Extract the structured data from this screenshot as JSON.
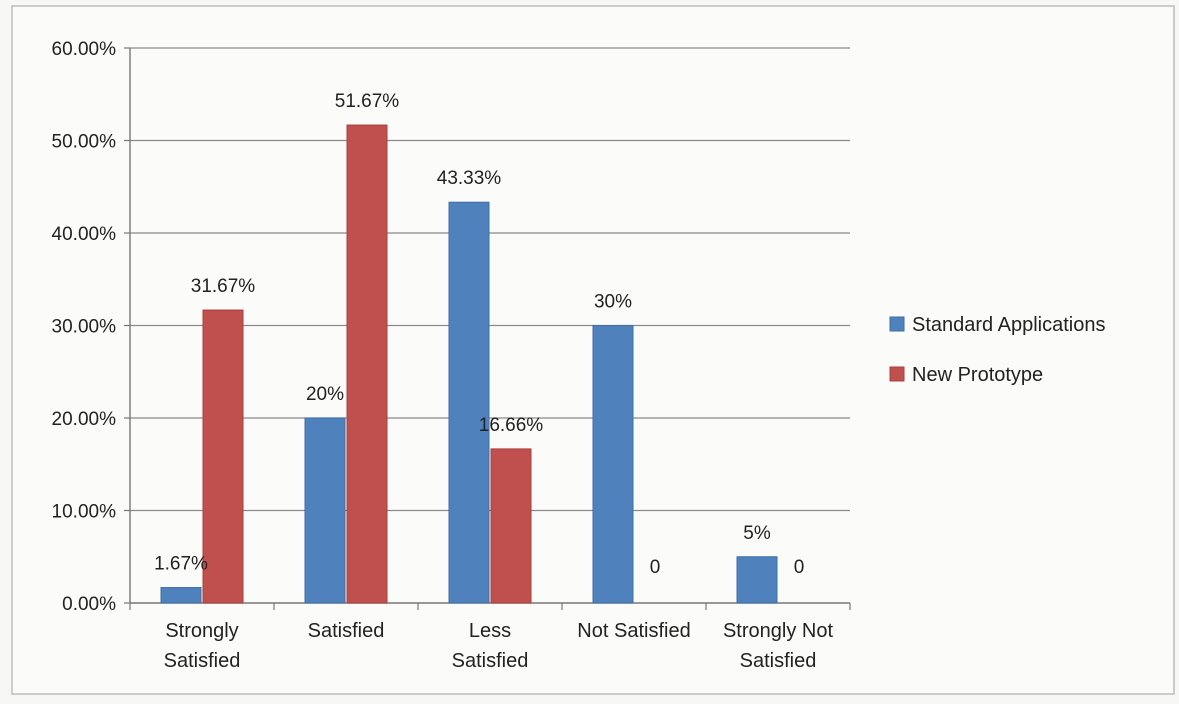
{
  "chart_data": {
    "type": "bar",
    "title": "",
    "xlabel": "",
    "ylabel": "",
    "ylim": [
      0,
      0.6
    ],
    "y_ticks": [
      0,
      0.1,
      0.2,
      0.3,
      0.4,
      0.5,
      0.6
    ],
    "y_tick_labels": [
      "0.00%",
      "10.00%",
      "20.00%",
      "30.00%",
      "40.00%",
      "50.00%",
      "60.00%"
    ],
    "grid": true,
    "legend_position": "right",
    "categories": [
      [
        "Strongly",
        "Satisfied"
      ],
      [
        "Satisfied"
      ],
      [
        "Less",
        "Satisfied"
      ],
      [
        "Not Satisfied"
      ],
      [
        "Strongly Not",
        "Satisfied"
      ]
    ],
    "series": [
      {
        "name": "Standard Applications",
        "color": "#4f81bd",
        "values": [
          0.0167,
          0.2,
          0.4333,
          0.3,
          0.05
        ],
        "labels": [
          "1.67%",
          "20%",
          "43.33%",
          "30%",
          "5%"
        ]
      },
      {
        "name": "New Prototype",
        "color": "#c0504d",
        "values": [
          0.3167,
          0.5167,
          0.1666,
          0,
          0
        ],
        "labels": [
          "31.67%",
          "51.67%",
          "16.66%",
          "0",
          "0"
        ]
      }
    ]
  }
}
